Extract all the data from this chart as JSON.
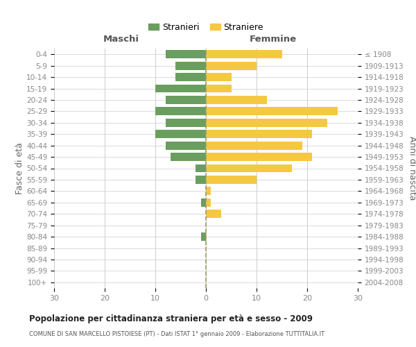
{
  "age_groups": [
    "0-4",
    "5-9",
    "10-14",
    "15-19",
    "20-24",
    "25-29",
    "30-34",
    "35-39",
    "40-44",
    "45-49",
    "50-54",
    "55-59",
    "60-64",
    "65-69",
    "70-74",
    "75-79",
    "80-84",
    "85-89",
    "90-94",
    "95-99",
    "100+"
  ],
  "birth_years": [
    "2004-2008",
    "1999-2003",
    "1994-1998",
    "1989-1993",
    "1984-1988",
    "1979-1983",
    "1974-1978",
    "1969-1973",
    "1964-1968",
    "1959-1963",
    "1954-1958",
    "1949-1953",
    "1944-1948",
    "1939-1943",
    "1934-1938",
    "1929-1933",
    "1924-1928",
    "1919-1923",
    "1914-1918",
    "1909-1913",
    "≤ 1908"
  ],
  "males": [
    8,
    6,
    6,
    10,
    8,
    10,
    8,
    10,
    8,
    7,
    2,
    2,
    0,
    1,
    0,
    0,
    1,
    0,
    0,
    0,
    0
  ],
  "females": [
    15,
    10,
    5,
    5,
    12,
    26,
    24,
    21,
    19,
    21,
    17,
    10,
    1,
    1,
    3,
    0,
    0,
    0,
    0,
    0,
    0
  ],
  "male_color": "#6a9e5e",
  "female_color": "#f5c842",
  "grid_color": "#cccccc",
  "title": "Popolazione per cittadinanza straniera per età e sesso - 2009",
  "subtitle": "COMUNE DI SAN MARCELLO PISTOIESE (PT) - Dati ISTAT 1° gennaio 2009 - Elaborazione TUTTITALIA.IT",
  "xlabel_left": "Maschi",
  "xlabel_right": "Femmine",
  "ylabel_left": "Fasce di età",
  "ylabel_right": "Anni di nascita",
  "legend_males": "Stranieri",
  "legend_females": "Straniere",
  "xlim": 30,
  "center_line_color": "#999966",
  "tick_label_color": "#888888",
  "title_color": "#222222",
  "subtitle_color": "#555555"
}
